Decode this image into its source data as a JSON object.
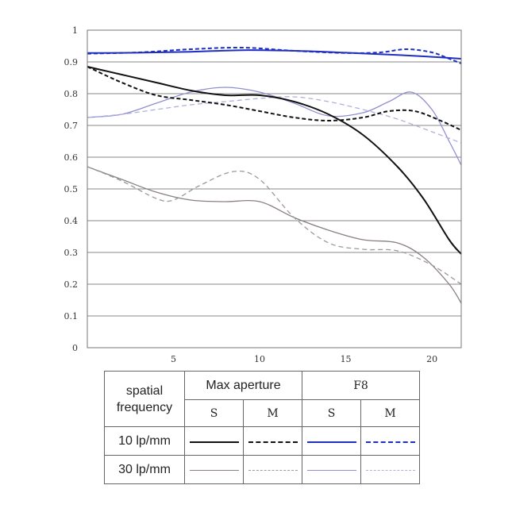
{
  "chart_data": {
    "type": "line",
    "title": "",
    "xlabel": "",
    "ylabel": "",
    "xlim": [
      0,
      21.7
    ],
    "ylim": [
      0,
      1
    ],
    "x_ticks": [
      5,
      10,
      15,
      20
    ],
    "x_tick_labels": [
      "5",
      "10",
      "15",
      "20"
    ],
    "y_ticks": [
      0,
      0.1,
      0.2,
      0.3,
      0.4,
      0.5,
      0.6,
      0.7,
      0.8,
      0.9,
      1
    ],
    "y_tick_labels": [
      "0",
      "0.1",
      "0.2",
      "0.3",
      "0.4",
      "0.5",
      "0.6",
      "0.7",
      "0.8",
      "0.9",
      "1"
    ],
    "grid": true,
    "series": [
      {
        "name": "10 lp/mm Max aperture S",
        "color": "#111111",
        "style": "solid",
        "x": [
          0,
          2,
          4,
          6,
          8,
          10,
          12,
          14,
          16,
          18,
          19.5,
          21,
          21.7
        ],
        "y": [
          0.885,
          0.86,
          0.835,
          0.81,
          0.795,
          0.795,
          0.775,
          0.735,
          0.67,
          0.57,
          0.47,
          0.34,
          0.295
        ]
      },
      {
        "name": "10 lp/mm Max aperture M",
        "color": "#111111",
        "style": "dashed",
        "x": [
          0,
          2,
          4,
          6,
          8,
          10,
          12,
          14,
          16,
          17.5,
          19,
          20.5,
          21.7
        ],
        "y": [
          0.885,
          0.835,
          0.795,
          0.78,
          0.765,
          0.745,
          0.725,
          0.715,
          0.725,
          0.745,
          0.745,
          0.715,
          0.685
        ]
      },
      {
        "name": "10 lp/mm F8 S",
        "color": "#1f2fbf",
        "style": "solid",
        "x": [
          0,
          3,
          6,
          9,
          12,
          15,
          18,
          20,
          21.7
        ],
        "y": [
          0.928,
          0.929,
          0.932,
          0.937,
          0.935,
          0.929,
          0.922,
          0.916,
          0.91
        ]
      },
      {
        "name": "10 lp/mm F8 M",
        "color": "#1f2fbf",
        "style": "dashed",
        "x": [
          0,
          3,
          6,
          9,
          12,
          15,
          17,
          18.5,
          20,
          21,
          21.7
        ],
        "y": [
          0.926,
          0.93,
          0.94,
          0.945,
          0.935,
          0.928,
          0.93,
          0.94,
          0.93,
          0.91,
          0.895
        ]
      },
      {
        "name": "30 lp/mm Max aperture S",
        "color": "#8a8080",
        "style": "solid",
        "x": [
          0,
          2,
          4,
          6,
          8,
          10,
          12,
          14,
          16,
          18,
          19.5,
          21,
          21.7
        ],
        "y": [
          0.57,
          0.53,
          0.49,
          0.465,
          0.46,
          0.46,
          0.41,
          0.37,
          0.34,
          0.33,
          0.285,
          0.2,
          0.14
        ]
      },
      {
        "name": "30 lp/mm Max aperture M",
        "color": "#9a9a9a",
        "style": "dashed",
        "x": [
          0,
          2,
          4,
          5,
          6.5,
          8.5,
          10,
          12,
          14,
          16,
          18,
          20,
          21.7
        ],
        "y": [
          0.57,
          0.525,
          0.47,
          0.465,
          0.51,
          0.555,
          0.53,
          0.41,
          0.33,
          0.31,
          0.305,
          0.26,
          0.2
        ]
      },
      {
        "name": "30 lp/mm F8 S",
        "color": "#8f8fd0",
        "style": "solid",
        "x": [
          0,
          2,
          4,
          6,
          8,
          10,
          12,
          14,
          16,
          17.5,
          18.8,
          20,
          21,
          21.7
        ],
        "y": [
          0.725,
          0.735,
          0.77,
          0.805,
          0.82,
          0.805,
          0.77,
          0.73,
          0.74,
          0.775,
          0.805,
          0.75,
          0.65,
          0.575
        ]
      },
      {
        "name": "30 lp/mm F8 M",
        "color": "#b0b0dc",
        "style": "dashed",
        "x": [
          0,
          2,
          4,
          6,
          8,
          10,
          12,
          14,
          16,
          18,
          20,
          21.7
        ],
        "y": [
          0.725,
          0.735,
          0.75,
          0.765,
          0.775,
          0.785,
          0.79,
          0.775,
          0.75,
          0.72,
          0.68,
          0.645
        ]
      }
    ]
  },
  "legend": {
    "row_header": "spatial\nfrequency",
    "group_max": "Max aperture",
    "group_f8": "F8",
    "col_s": "S",
    "col_m": "M",
    "row_10": "10 lp/mm",
    "row_30": "30 lp/mm"
  }
}
